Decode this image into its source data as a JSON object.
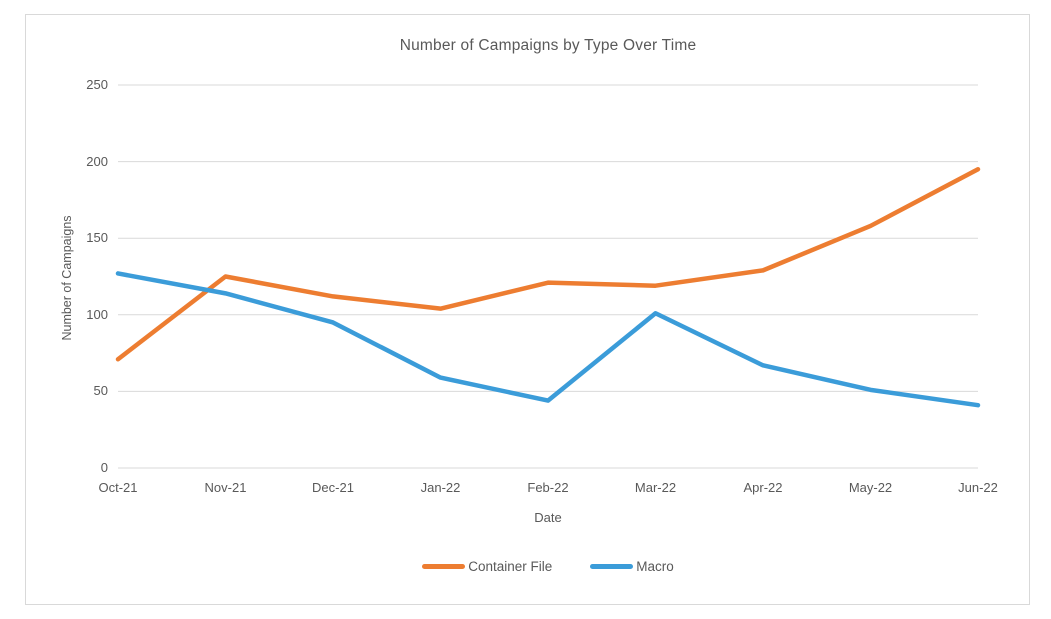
{
  "chart": {
    "title": "Number of Campaigns by Type Over Time",
    "xlabel": "Date",
    "ylabel": "Number of Campaigns"
  },
  "chart_data": {
    "type": "line",
    "title": "Number of Campaigns by Type Over Time",
    "xlabel": "Date",
    "ylabel": "Number of Campaigns",
    "categories": [
      "Oct-21",
      "Nov-21",
      "Dec-21",
      "Jan-22",
      "Feb-22",
      "Mar-22",
      "Apr-22",
      "May-22",
      "Jun-22"
    ],
    "series": [
      {
        "name": "Container File",
        "color": "#ED7D31",
        "values": [
          71,
          125,
          112,
          104,
          121,
          119,
          129,
          158,
          195
        ]
      },
      {
        "name": "Macro",
        "color": "#3B9CD9",
        "values": [
          127,
          114,
          95,
          59,
          44,
          101,
          67,
          51,
          41
        ]
      }
    ],
    "ylim": [
      0,
      250
    ],
    "y_ticks": [
      0,
      50,
      100,
      150,
      200,
      250
    ],
    "grid": true,
    "legend_position": "bottom"
  },
  "colors": {
    "text": "#595959",
    "gridline": "#D9D9D9",
    "frame_border": "#D9D9D9",
    "background": "#FFFFFF",
    "series_container_file": "#ED7D31",
    "series_macro": "#3B9CD9"
  }
}
